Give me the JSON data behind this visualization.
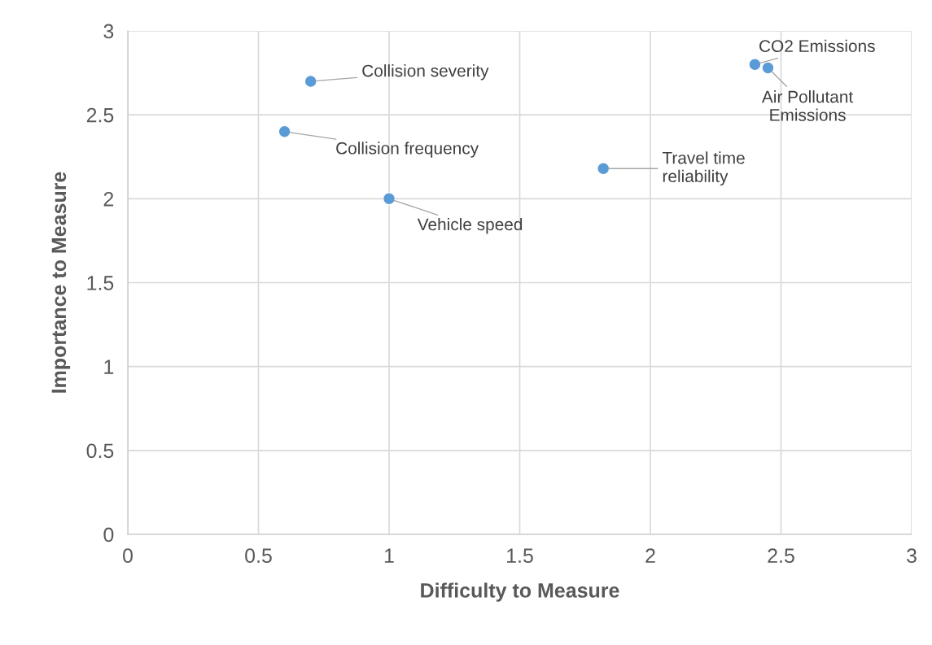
{
  "chart_data": {
    "type": "scatter",
    "xlabel": "Difficulty to Measure",
    "ylabel": "Importance to Measure",
    "series": [
      {
        "color": "#5b9bd5",
        "x": [
          0.7,
          0.6,
          1.0,
          1.82,
          2.4,
          2.45
        ],
        "values": [
          2.7,
          2.4,
          2.0,
          2.18,
          2.8,
          2.78
        ]
      }
    ],
    "annotations": [
      {
        "text": "Collision severity",
        "x": 0.7,
        "y": 2.7
      },
      {
        "text": "Collision frequency",
        "x": 0.6,
        "y": 2.4
      },
      {
        "text": "Vehicle speed",
        "x": 1.0,
        "y": 2.0
      },
      {
        "text": "Travel time\nreliability",
        "x": 1.82,
        "y": 2.18
      },
      {
        "text": "CO2 Emissions",
        "x": 2.4,
        "y": 2.8
      },
      {
        "text": "Air Pollutant\nEmissions",
        "x": 2.45,
        "y": 2.78
      }
    ],
    "xlim": [
      0,
      3
    ],
    "ylim": [
      0,
      3
    ],
    "xticks": [
      0,
      0.5,
      1,
      1.5,
      2,
      2.5,
      3
    ],
    "yticks": [
      0,
      0.5,
      1,
      1.5,
      2,
      2.5,
      3
    ],
    "grid": true,
    "marker": "circle",
    "legend": false
  }
}
